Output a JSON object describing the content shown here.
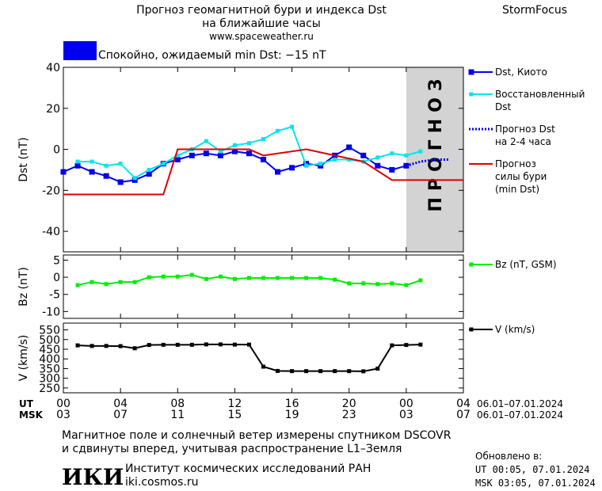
{
  "header": {
    "title_line1": "Прогноз геомагнитной бури и индекса Dst",
    "title_line2": "на ближайшие часы",
    "site": "www.spaceweather.ru",
    "brand": "StormFocus"
  },
  "status": {
    "text": "Спокойно, ожидаемый min Dst: −15 nT",
    "color": "#0000ee"
  },
  "time_axis": {
    "xlim": [
      0,
      28
    ],
    "xticks": [
      0,
      4,
      8,
      12,
      16,
      20,
      24,
      28
    ],
    "ut_prefix": "UT",
    "msk_prefix": "MSK",
    "ut_labels": [
      "00",
      "04",
      "08",
      "12",
      "16",
      "20",
      "00",
      "04"
    ],
    "msk_labels": [
      "03",
      "07",
      "11",
      "15",
      "19",
      "23",
      "03",
      "07"
    ],
    "ut_range": "06.01–07.01.2024",
    "msk_range": "06.01–07.01.2024"
  },
  "chart_data": [
    {
      "type": "line",
      "ylabel": "Dst (nT)",
      "ylim": [
        -50,
        40
      ],
      "yticks": [
        -40,
        -20,
        0,
        20,
        40
      ],
      "forecast_region": [
        24,
        28
      ],
      "forecast_label": "ПРОГНОЗ",
      "forecast_color": "#d3d3d3",
      "series": [
        {
          "name": "Dst, Киото",
          "color": "#0000ee",
          "marker": "square",
          "style": "solid",
          "x": [
            0,
            1,
            2,
            3,
            4,
            5,
            6,
            7,
            8,
            9,
            10,
            11,
            12,
            13,
            14,
            15,
            16,
            17,
            18,
            19,
            20,
            21,
            22,
            23,
            24
          ],
          "values": [
            -11,
            -8,
            -11,
            -13,
            -16,
            -15,
            -12,
            -7,
            -5,
            -3,
            -2,
            -3,
            -1,
            -2,
            -5,
            -11,
            -9,
            -7,
            -8,
            -3,
            1,
            -3,
            -8,
            -10,
            -8
          ]
        },
        {
          "name": "Восстановленный\nDst",
          "color": "#00e5ee",
          "marker": "small",
          "style": "solid",
          "x": [
            1,
            2,
            3,
            4,
            5,
            6,
            7,
            8,
            9,
            10,
            11,
            12,
            13,
            14,
            15,
            16,
            17,
            18,
            19,
            20,
            21,
            22,
            23,
            24,
            25
          ],
          "values": [
            -6,
            -6,
            -8,
            -7,
            -14,
            -10,
            -7,
            -3,
            0,
            4,
            -1,
            2,
            3,
            5,
            9,
            11,
            -8,
            -7,
            -5,
            -5,
            -6,
            -4,
            -2,
            -3,
            -1
          ]
        },
        {
          "name": "Прогноз Dst\nна 2-4 часа",
          "color": "#0000ee",
          "marker": "none",
          "style": "dotted",
          "x": [
            24,
            25,
            26,
            27
          ],
          "values": [
            -8,
            -6,
            -5,
            -5
          ]
        },
        {
          "name": "Прогноз\nсилы бури\n(min Dst)",
          "color": "#dd0000",
          "marker": "none",
          "style": "solid",
          "x": [
            0,
            7,
            8,
            13,
            14,
            17,
            21,
            23,
            28
          ],
          "values": [
            -22,
            -22,
            0,
            0,
            -3,
            0,
            -6,
            -15,
            -15
          ]
        }
      ]
    },
    {
      "type": "line",
      "ylabel": "Bz (nT)",
      "ylim": [
        -12,
        6.5
      ],
      "yticks": [
        -10,
        -5,
        0,
        5
      ],
      "series": [
        {
          "name": "Bz (nT, GSM)",
          "color": "#00ee00",
          "marker": "small",
          "style": "solid",
          "x": [
            1,
            2,
            3,
            4,
            5,
            6,
            7,
            8,
            9,
            10,
            11,
            12,
            13,
            14,
            15,
            16,
            17,
            18,
            19,
            20,
            21,
            22,
            23,
            24,
            25
          ],
          "values": [
            -2.3,
            -1.4,
            -2,
            -1.4,
            -1.4,
            0,
            0.2,
            0.2,
            0.7,
            -0.5,
            0.2,
            -0.5,
            -0.2,
            -0.2,
            -0.2,
            -0.2,
            -0.2,
            -0.2,
            -0.7,
            -1.8,
            -1.8,
            -2,
            -1.8,
            -2.3,
            -0.9
          ]
        }
      ]
    },
    {
      "type": "line",
      "ylabel": "V (km/s)",
      "ylim": [
        225,
        585
      ],
      "yticks": [
        250,
        300,
        350,
        400,
        450,
        500,
        550
      ],
      "series": [
        {
          "name": "V (km/s)",
          "color": "#000000",
          "marker": "small",
          "style": "solid",
          "x": [
            1,
            2,
            3,
            4,
            5,
            6,
            7,
            8,
            9,
            10,
            11,
            12,
            13,
            14,
            15,
            16,
            17,
            18,
            19,
            20,
            21,
            22,
            23,
            24,
            25
          ],
          "values": [
            470,
            467,
            467,
            466,
            455,
            472,
            473,
            473,
            473,
            475,
            475,
            474,
            474,
            360,
            338,
            337,
            337,
            337,
            337,
            337,
            336,
            350,
            470,
            472,
            474
          ]
        }
      ]
    }
  ],
  "footer": {
    "line1": "Магнитное поле и солнечный ветер измерены спутником DSCOVR",
    "line2": "и сдвинуты вперед, учитывая распространение L1–Земля",
    "logo": "ИКИ",
    "institute": "Институт космических исследований РАН",
    "url": "iki.cosmos.ru",
    "updated": "Обновлено в:",
    "updated_ut": "UT  00:05, 07.01.2024",
    "updated_msk": "MSK 03:05, 07.01.2024"
  }
}
